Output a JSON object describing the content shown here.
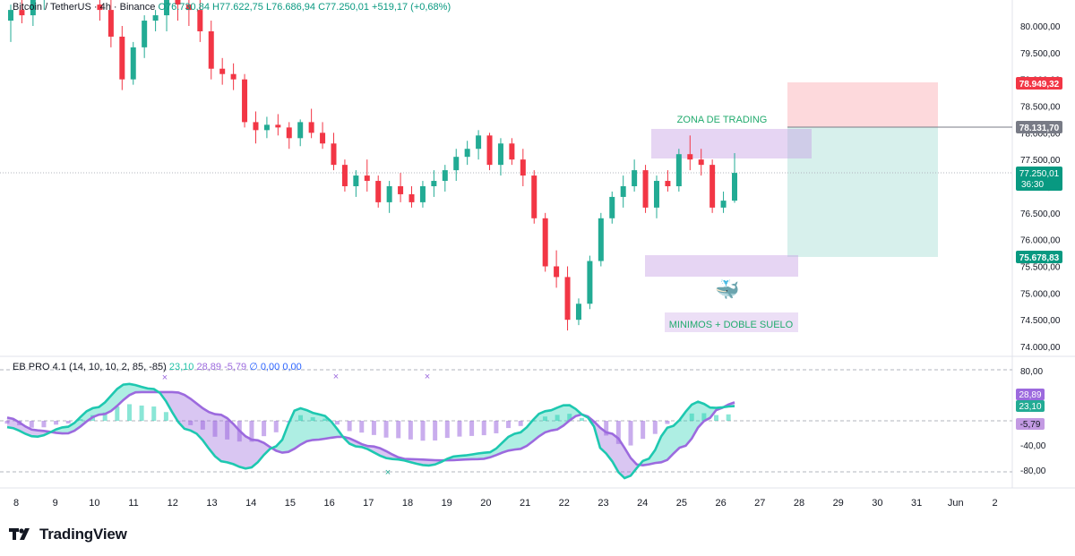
{
  "header": {
    "symbol": "Bitcoin / TetherUS · 4h · Binance",
    "open": "O76.730,84",
    "high": "H77.622,75",
    "low": "L76.686,94",
    "close": "C77.250,01",
    "change": "+519,17 (+0,68%)"
  },
  "indicator": {
    "name": "EB PRO 4.1 (14, 10, 10, 2, 85, -85)",
    "v1": "23,10",
    "v2": "28,89",
    "v3": "-5,79",
    "v4": "∅  0,00  0,00"
  },
  "price_axis": [
    "80.000,00",
    "79.500,00",
    "79.000,00",
    "78.500,00",
    "78.000,00",
    "77.500,00",
    "77.000,00",
    "76.500,00",
    "76.000,00",
    "75.500,00",
    "75.000,00",
    "74.500,00",
    "74.000,00"
  ],
  "price_badges": {
    "target": "78.949,32",
    "entry": "78.131,70",
    "current": "77.250,01",
    "timer": "36:30",
    "stop": "75.678,83"
  },
  "osc_axis": [
    "80,00",
    "-40,00",
    "-80,00"
  ],
  "osc_badges": {
    "a": "28,89",
    "b": "23,10",
    "c": "-5,79"
  },
  "time_axis": [
    "8",
    "9",
    "10",
    "11",
    "12",
    "13",
    "14",
    "15",
    "16",
    "17",
    "18",
    "19",
    "20",
    "21",
    "22",
    "23",
    "24",
    "25",
    "26",
    "27",
    "28",
    "29",
    "30",
    "31",
    "Jun",
    "2"
  ],
  "annotations": {
    "zone_trading": "ZONA DE TRADING",
    "minimos": "MINIMOS + DOBLE SUELO",
    "whale": "🐳"
  },
  "brand": "TradingView",
  "colors": {
    "up": "#22ab94",
    "down": "#f23645",
    "teal": "#2ad1b5",
    "purple": "#9c6ade"
  },
  "chart_data": {
    "type": "candlestick",
    "title": "Bitcoin / TetherUS · 4h · Binance",
    "ylim": [
      73950,
      80350
    ],
    "current_price": 77250.01,
    "ohlc_approx": [
      [
        80100,
        80400,
        79700,
        80300
      ],
      [
        80300,
        80550,
        80050,
        80200
      ],
      [
        80200,
        80600,
        80000,
        80500
      ],
      [
        80500,
        80700,
        80300,
        80650
      ],
      [
        80650,
        80900,
        80500,
        80800
      ],
      [
        80800,
        81000,
        80600,
        80900
      ],
      [
        80900,
        81100,
        80700,
        81000
      ],
      [
        81000,
        81200,
        80800,
        81100
      ],
      [
        80400,
        80600,
        80100,
        80300
      ],
      [
        80300,
        80500,
        79600,
        79800
      ],
      [
        79800,
        80000,
        78800,
        79000
      ],
      [
        79000,
        79700,
        78900,
        79600
      ],
      [
        79600,
        80200,
        79400,
        80100
      ],
      [
        80100,
        80300,
        79900,
        80200
      ],
      [
        80200,
        80600,
        79900,
        80500
      ],
      [
        80500,
        80800,
        80100,
        80400
      ],
      [
        80400,
        80600,
        80000,
        80300
      ],
      [
        80300,
        80500,
        79700,
        79900
      ],
      [
        79900,
        80100,
        79000,
        79200
      ],
      [
        79200,
        79400,
        78900,
        79100
      ],
      [
        79100,
        79300,
        78800,
        79000
      ],
      [
        79000,
        79100,
        78100,
        78200
      ],
      [
        78200,
        78400,
        77800,
        78050
      ],
      [
        78050,
        78300,
        77900,
        78150
      ],
      [
        78150,
        78350,
        77950,
        78100
      ],
      [
        78100,
        78200,
        77700,
        77900
      ],
      [
        77900,
        78250,
        77750,
        78200
      ],
      [
        78200,
        78450,
        77900,
        78000
      ],
      [
        78000,
        78200,
        77700,
        77800
      ],
      [
        77800,
        78000,
        77300,
        77400
      ],
      [
        77400,
        77500,
        76900,
        77000
      ],
      [
        77000,
        77300,
        76800,
        77200
      ],
      [
        77200,
        77500,
        76900,
        77100
      ],
      [
        77100,
        77200,
        76600,
        76700
      ],
      [
        76700,
        77100,
        76500,
        77000
      ],
      [
        77000,
        77250,
        76700,
        76850
      ],
      [
        76850,
        77000,
        76600,
        76700
      ],
      [
        76700,
        77100,
        76600,
        77000
      ],
      [
        77000,
        77300,
        76800,
        77100
      ],
      [
        77100,
        77400,
        76900,
        77300
      ],
      [
        77300,
        77700,
        77100,
        77550
      ],
      [
        77550,
        77850,
        77400,
        77700
      ],
      [
        77700,
        78050,
        77500,
        77950
      ],
      [
        77950,
        78000,
        77300,
        77400
      ],
      [
        77400,
        77900,
        77200,
        77800
      ],
      [
        77800,
        77900,
        77400,
        77500
      ],
      [
        77500,
        77700,
        77000,
        77200
      ],
      [
        77200,
        77300,
        76300,
        76400
      ],
      [
        76400,
        76500,
        75400,
        75500
      ],
      [
        75500,
        75800,
        75100,
        75300
      ],
      [
        75300,
        75500,
        74300,
        74500
      ],
      [
        74500,
        74900,
        74400,
        74800
      ],
      [
        74800,
        75700,
        74700,
        75600
      ],
      [
        75600,
        76500,
        75500,
        76400
      ],
      [
        76400,
        76900,
        76300,
        76800
      ],
      [
        76800,
        77200,
        76600,
        77000
      ],
      [
        77000,
        77500,
        76900,
        77300
      ],
      [
        77300,
        77400,
        76500,
        76600
      ],
      [
        76600,
        77200,
        76400,
        77100
      ],
      [
        77100,
        77300,
        76900,
        77000
      ],
      [
        77000,
        77700,
        76900,
        77600
      ],
      [
        77600,
        77950,
        77300,
        77500
      ],
      [
        77500,
        77700,
        77200,
        77400
      ],
      [
        77400,
        77500,
        76500,
        76600
      ],
      [
        76600,
        76900,
        76500,
        76730
      ],
      [
        76730,
        77620,
        76690,
        77250
      ]
    ],
    "zones": {
      "target_price": 78949.32,
      "entry_price": 78131.7,
      "stop_price": 75678.83,
      "trading_zone": [
        77500,
        78100
      ],
      "double_bottom_zone": [
        75350,
        75750
      ]
    },
    "oscillator": {
      "name": "EB PRO 4.1",
      "ylim": [
        -95,
        95
      ],
      "levels": [
        80,
        0,
        -40,
        -80
      ],
      "fast_values": [
        23.1
      ],
      "slow_values": [
        28.89
      ],
      "histogram_last": -5.79
    }
  }
}
